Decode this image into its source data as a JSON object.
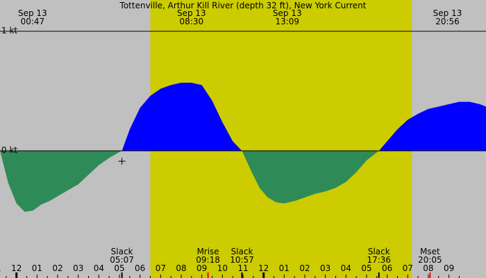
{
  "chart_data": {
    "type": "area",
    "title": "Tottenville, Arthur Kill River (depth 32 ft), New York Current",
    "ylim": [
      -1,
      1
    ],
    "y_labels": [
      {
        "value": 1,
        "label": "1 kt"
      },
      {
        "value": 0,
        "label": "0 kt"
      }
    ],
    "x_range_hours": [
      -0.8,
      22.8
    ],
    "daylight": {
      "start": 6.5,
      "end": 19.2
    },
    "colors": {
      "night": "#c0c0c0",
      "day": "#cccc00",
      "flood": "#0000ff",
      "ebb": "#2e8b57",
      "axis": "#000000",
      "moon_tick": "#ff0000"
    },
    "top_labels": [
      {
        "hour": 0.78,
        "date": "Sep 13",
        "time": "00:47"
      },
      {
        "hour": 8.5,
        "date": "Sep 13",
        "time": "08:30"
      },
      {
        "hour": 13.15,
        "date": "Sep 13",
        "time": "13:09"
      },
      {
        "hour": 20.93,
        "date": "Sep 13",
        "time": "20:56"
      }
    ],
    "events": [
      {
        "hour": 5.12,
        "name": "Slack",
        "time": "05:07"
      },
      {
        "hour": 9.3,
        "name": "Mrise",
        "time": "09:18"
      },
      {
        "hour": 10.95,
        "name": "Slack",
        "time": "10:57"
      },
      {
        "hour": 17.6,
        "name": "Slack",
        "time": "17:36"
      },
      {
        "hour": 20.08,
        "name": "Mset",
        "time": "20:05"
      }
    ],
    "hour_ticks": [
      {
        "hour": -1,
        "label": "11"
      },
      {
        "hour": 0,
        "label": "12"
      },
      {
        "hour": 1,
        "label": "01"
      },
      {
        "hour": 2,
        "label": "02"
      },
      {
        "hour": 3,
        "label": "03"
      },
      {
        "hour": 4,
        "label": "04"
      },
      {
        "hour": 5,
        "label": "05"
      },
      {
        "hour": 6,
        "label": "06"
      },
      {
        "hour": 7,
        "label": "07"
      },
      {
        "hour": 8,
        "label": "08"
      },
      {
        "hour": 9,
        "label": "09"
      },
      {
        "hour": 10,
        "label": "10"
      },
      {
        "hour": 11,
        "label": "11"
      },
      {
        "hour": 12,
        "label": "12"
      },
      {
        "hour": 13,
        "label": "01"
      },
      {
        "hour": 14,
        "label": "02"
      },
      {
        "hour": 15,
        "label": "03"
      },
      {
        "hour": 16,
        "label": "04"
      },
      {
        "hour": 17,
        "label": "05"
      },
      {
        "hour": 18,
        "label": "06"
      },
      {
        "hour": 19,
        "label": "07"
      },
      {
        "hour": 20,
        "label": "08"
      },
      {
        "hour": 21,
        "label": "09"
      }
    ],
    "series": [
      {
        "x": [
          -0.8,
          -0.4,
          0.0,
          0.4,
          0.8,
          1.2,
          1.6,
          2.0,
          2.5,
          3.0,
          3.5,
          4.0,
          4.5,
          5.0,
          5.12,
          5.5,
          6.0,
          6.5,
          7.0,
          7.5,
          8.0,
          8.5,
          9.0,
          9.5,
          10.0,
          10.5,
          10.95,
          11.4,
          11.8,
          12.2,
          12.6,
          13.0,
          13.5,
          14.0,
          14.5,
          15.0,
          15.5,
          16.0,
          16.5,
          17.0,
          17.6,
          18.0,
          18.5,
          19.0,
          19.5,
          20.0,
          20.5,
          21.0,
          21.5,
          22.0,
          22.5,
          22.8
        ],
        "y": [
          0.0,
          -0.27,
          -0.44,
          -0.51,
          -0.5,
          -0.45,
          -0.42,
          -0.38,
          -0.33,
          -0.28,
          -0.2,
          -0.12,
          -0.06,
          -0.01,
          0.0,
          0.18,
          0.36,
          0.46,
          0.52,
          0.55,
          0.57,
          0.57,
          0.55,
          0.42,
          0.24,
          0.08,
          0.0,
          -0.17,
          -0.31,
          -0.39,
          -0.43,
          -0.44,
          -0.42,
          -0.39,
          -0.36,
          -0.34,
          -0.31,
          -0.26,
          -0.18,
          -0.08,
          0.0,
          0.08,
          0.18,
          0.26,
          0.31,
          0.35,
          0.37,
          0.39,
          0.41,
          0.41,
          0.39,
          0.37
        ]
      }
    ]
  }
}
